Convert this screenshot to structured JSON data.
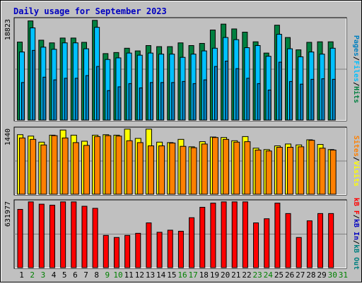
{
  "title": "Daily usage for September 2023",
  "colors": {
    "background": "#c0c0c0",
    "title": "#0000c0",
    "hits": "#008040",
    "files": "#00c0ff",
    "pages": "#0080c0",
    "visits": "#ffff00",
    "sites": "#ff8000",
    "kbytes": "#ff0000",
    "kb_in": "#0000c0",
    "kb_out": "#008080",
    "day_weekday": "#000000",
    "day_weekend": "#008000"
  },
  "panels": {
    "hits_panel": {
      "ymax_label": "18823",
      "legend": [
        {
          "text": "Pages",
          "color_key": "pages"
        },
        {
          "text": "/",
          "color_key": "day_weekday"
        },
        {
          "text": "Files",
          "color_key": "files"
        },
        {
          "text": "/",
          "color_key": "day_weekday"
        },
        {
          "text": "Hits",
          "color_key": "hits"
        }
      ]
    },
    "visits_panel": {
      "ymax_label": "1440",
      "legend": [
        {
          "text": "Sites",
          "color_key": "sites"
        },
        {
          "text": "/",
          "color_key": "day_weekday"
        },
        {
          "text": "Visits",
          "color_key": "visits"
        }
      ]
    },
    "kbytes_panel": {
      "ymax_label": "631977",
      "legend": [
        {
          "text": "kB F",
          "color_key": "kbytes"
        },
        {
          "text": "/",
          "color_key": "day_weekday"
        },
        {
          "text": "kB In",
          "color_key": "kb_in"
        },
        {
          "text": "/",
          "color_key": "day_weekday"
        },
        {
          "text": "kB Out",
          "color_key": "kb_out"
        }
      ]
    }
  },
  "chart_data": {
    "type": "bar",
    "title": "Daily usage for September 2023",
    "categories": [
      "1",
      "2",
      "3",
      "4",
      "5",
      "6",
      "7",
      "8",
      "9",
      "10",
      "11",
      "12",
      "13",
      "14",
      "15",
      "16",
      "17",
      "18",
      "19",
      "20",
      "21",
      "22",
      "23",
      "24",
      "25",
      "26",
      "27",
      "28",
      "29",
      "30",
      "31"
    ],
    "weekend_days": [
      "2",
      "3",
      "9",
      "10",
      "16",
      "17",
      "23",
      "24",
      "30",
      "31"
    ],
    "series": [
      {
        "name": "Hits",
        "panel": "hits_panel",
        "values": [
          14550,
          18500,
          14900,
          14400,
          15300,
          15300,
          14500,
          18600,
          12400,
          12600,
          13400,
          12900,
          13900,
          13700,
          13700,
          14400,
          13900,
          14300,
          16800,
          17900,
          17000,
          16400,
          14600,
          12500,
          17700,
          15400,
          13100,
          14500,
          14600,
          14600,
          0
        ]
      },
      {
        "name": "Files",
        "panel": "hits_panel",
        "values": [
          12700,
          17200,
          13600,
          13200,
          14400,
          14400,
          13300,
          17300,
          11300,
          11600,
          12500,
          12100,
          12500,
          12300,
          12300,
          11700,
          12300,
          12900,
          13400,
          15400,
          15000,
          13500,
          13900,
          11900,
          16000,
          13300,
          11800,
          12700,
          12300,
          13400,
          0
        ]
      },
      {
        "name": "Pages",
        "panel": "hits_panel",
        "values": [
          7000,
          13000,
          8000,
          7500,
          7800,
          7800,
          8300,
          10000,
          5500,
          6200,
          6800,
          6000,
          7000,
          7000,
          7000,
          7200,
          6800,
          7500,
          10000,
          11000,
          9600,
          7800,
          6800,
          5600,
          10800,
          7200,
          6700,
          7600,
          7700,
          7600,
          0
        ]
      },
      {
        "name": "Visits",
        "panel": "visits_panel",
        "values": [
          1280,
          1250,
          1120,
          1270,
          1380,
          1270,
          1140,
          1270,
          1280,
          1270,
          1400,
          1200,
          1400,
          1120,
          1110,
          1180,
          1020,
          1130,
          1230,
          1220,
          1150,
          1240,
          990,
          960,
          1040,
          1080,
          1060,
          1170,
          1070,
          960,
          0
        ]
      },
      {
        "name": "Sites",
        "panel": "visits_panel",
        "values": [
          1210,
          1180,
          1060,
          1260,
          1210,
          1110,
          1050,
          1240,
          1260,
          1250,
          1150,
          1110,
          1040,
          1040,
          1100,
          1030,
          1000,
          1080,
          1220,
          1180,
          1120,
          1130,
          950,
          930,
          1010,
          1010,
          1020,
          1160,
          990,
          950,
          0
        ]
      },
      {
        "name": "kBytes",
        "panel": "kbytes_panel",
        "values": [
          560000,
          631977,
          610000,
          600000,
          631977,
          631977,
          590000,
          570000,
          310000,
          290000,
          310000,
          330000,
          430000,
          340000,
          360000,
          350000,
          480000,
          580000,
          620000,
          631977,
          631977,
          631977,
          430000,
          470000,
          620000,
          520000,
          290000,
          450000,
          520000,
          520000,
          0
        ]
      }
    ]
  }
}
